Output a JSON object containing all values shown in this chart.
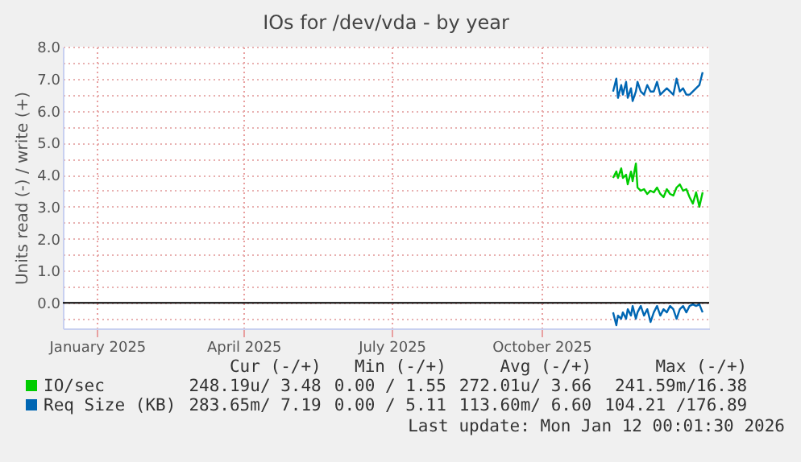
{
  "chart_data": {
    "type": "line",
    "title": "IOs for /dev/vda - by year",
    "ylabel": "Units read (-) / write (+)",
    "xlim": [
      "2024-12-11",
      "2026-01-12"
    ],
    "xticks": [
      {
        "value": "2025-01-01",
        "label": "January 2025"
      },
      {
        "value": "2025-04-01",
        "label": "April 2025"
      },
      {
        "value": "2025-07-01",
        "label": "July 2025"
      },
      {
        "value": "2025-10-01",
        "label": "October 2025"
      }
    ],
    "ylim": [
      -0.8,
      8.0
    ],
    "yticks": [
      {
        "value": -0.5,
        "label": null
      },
      {
        "value": 0,
        "label": "0.0"
      },
      {
        "value": 0.5,
        "label": null
      },
      {
        "value": 1,
        "label": "1.0"
      },
      {
        "value": 1.5,
        "label": null
      },
      {
        "value": 2,
        "label": "2.0"
      },
      {
        "value": 2.5,
        "label": null
      },
      {
        "value": 3,
        "label": "3.0"
      },
      {
        "value": 3.5,
        "label": null
      },
      {
        "value": 4,
        "label": "4.0"
      },
      {
        "value": 4.5,
        "label": null
      },
      {
        "value": 5,
        "label": "5.0"
      },
      {
        "value": 5.5,
        "label": null
      },
      {
        "value": 6,
        "label": "6.0"
      },
      {
        "value": 6.5,
        "label": null
      },
      {
        "value": 7,
        "label": "7.0"
      },
      {
        "value": 7.5,
        "label": null
      },
      {
        "value": 8,
        "label": "8.0"
      }
    ],
    "grid": true,
    "legend": "bottom",
    "marker": "none",
    "line_style": "solid",
    "x": [
      "2025-11-14",
      "2025-11-16",
      "2025-11-17",
      "2025-11-19",
      "2025-11-20",
      "2025-11-22",
      "2025-11-23",
      "2025-11-25",
      "2025-11-26",
      "2025-11-28",
      "2025-11-29",
      "2025-12-01",
      "2025-12-03",
      "2025-12-05",
      "2025-12-07",
      "2025-12-09",
      "2025-12-11",
      "2025-12-13",
      "2025-12-15",
      "2025-12-17",
      "2025-12-19",
      "2025-12-21",
      "2025-12-23",
      "2025-12-25",
      "2025-12-27",
      "2025-12-29",
      "2025-12-31",
      "2026-01-02",
      "2026-01-04",
      "2026-01-06",
      "2026-01-08"
    ],
    "series": [
      {
        "name": "IO/sec",
        "color": "#00cc00",
        "values": [
          3.9,
          4.1,
          3.9,
          4.2,
          3.9,
          4.0,
          3.7,
          4.1,
          3.8,
          4.35,
          3.6,
          3.5,
          3.55,
          3.4,
          3.5,
          3.45,
          3.6,
          3.4,
          3.3,
          3.55,
          3.4,
          3.35,
          3.6,
          3.7,
          3.5,
          3.55,
          3.3,
          3.1,
          3.45,
          3.0,
          3.45
        ]
      },
      {
        "name": "Req Size (KB)",
        "color": "#0066b3",
        "values": [
          6.6,
          7.0,
          6.4,
          6.8,
          6.5,
          6.9,
          6.4,
          6.7,
          6.3,
          6.6,
          6.9,
          6.6,
          6.5,
          6.8,
          6.6,
          6.6,
          6.9,
          6.5,
          6.6,
          6.7,
          6.6,
          6.5,
          7.0,
          6.6,
          6.7,
          6.5,
          6.5,
          6.6,
          6.7,
          6.8,
          7.2
        ]
      },
      {
        "color": "#0066b3",
        "values": [
          -0.3,
          -0.7,
          -0.4,
          -0.5,
          -0.3,
          -0.5,
          -0.2,
          -0.4,
          -0.1,
          -0.5,
          -0.3,
          -0.1,
          -0.4,
          -0.2,
          -0.6,
          -0.3,
          -0.1,
          -0.4,
          -0.2,
          -0.3,
          -0.1,
          -0.2,
          -0.5,
          -0.2,
          -0.1,
          -0.3,
          -0.1,
          -0.05,
          -0.1,
          -0.05,
          -0.3
        ]
      }
    ],
    "ref_lines": [
      {
        "axis": "y",
        "value": 0,
        "color": "#000000"
      }
    ],
    "annotations": [
      "Cur (-/+)",
      "Min (-/+)",
      "Avg (-/+)",
      "Max (-/+)",
      "248.19u/ 3.48",
      "0.00 / 1.55",
      "272.01u/ 3.66",
      "241.59m/16.38",
      "283.65m/ 7.19",
      "0.00 / 5.11",
      "113.60m/ 6.60",
      "104.21 /176.89",
      "Last update: Mon Jan 12 00:01:30 2026"
    ]
  }
}
